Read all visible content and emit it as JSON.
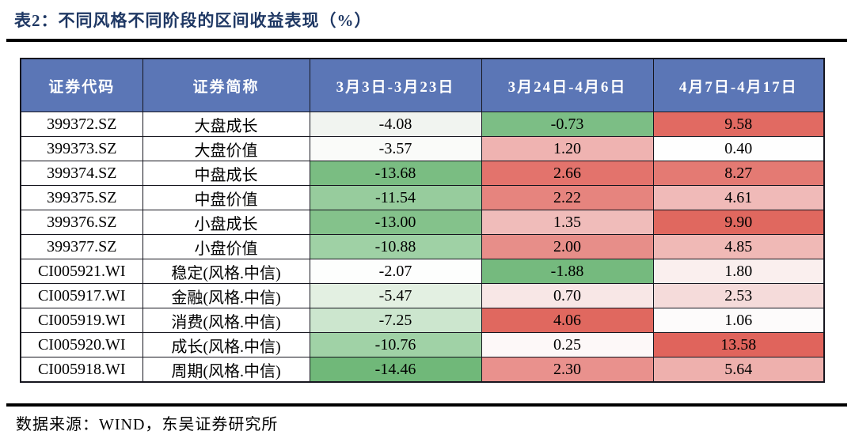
{
  "title": "表2：不同风格不同阶段的区间收益表现（%）",
  "footer": "数据来源：WIND，东吴证券研究所",
  "style": {
    "title_color": "#1F3864",
    "header_bg": "#5B76B6",
    "header_text": "#FFFFFF",
    "border_color": "#16161F",
    "positive_strong": "#E0645C",
    "negative_strong": "#70B879"
  },
  "table": {
    "headers": [
      "证券代码",
      "证券简称",
      "3月3日-3月23日",
      "3月24日-4月6日",
      "4月7日-4月17日"
    ],
    "rows": [
      {
        "code": "399372.SZ",
        "name": "大盘成长",
        "cells": [
          {
            "text": "-4.08",
            "bg": "#F1F4F0"
          },
          {
            "text": "-0.73",
            "bg": "#7CBE85"
          },
          {
            "text": "9.58",
            "bg": "#E16A62"
          }
        ]
      },
      {
        "code": "399373.SZ",
        "name": "大盘价值",
        "cells": [
          {
            "text": "-3.57",
            "bg": "#FAFBF9"
          },
          {
            "text": "1.20",
            "bg": "#EFB3B1"
          },
          {
            "text": "0.40",
            "bg": "#FEFEFE"
          }
        ]
      },
      {
        "code": "399374.SZ",
        "name": "中盘成长",
        "cells": [
          {
            "text": "-13.68",
            "bg": "#7ABD82"
          },
          {
            "text": "2.66",
            "bg": "#E3736C"
          },
          {
            "text": "8.27",
            "bg": "#E47A73"
          }
        ]
      },
      {
        "code": "399375.SZ",
        "name": "中盘价值",
        "cells": [
          {
            "text": "-11.54",
            "bg": "#97CC9D"
          },
          {
            "text": "2.22",
            "bg": "#E6847E"
          },
          {
            "text": "4.61",
            "bg": "#F0BAB8"
          }
        ]
      },
      {
        "code": "399376.SZ",
        "name": "小盘成长",
        "cells": [
          {
            "text": "-13.00",
            "bg": "#84C28B"
          },
          {
            "text": "1.35",
            "bg": "#F0BCBA"
          },
          {
            "text": "9.90",
            "bg": "#E0685F"
          }
        ]
      },
      {
        "code": "399377.SZ",
        "name": "小盘价值",
        "cells": [
          {
            "text": "-10.88",
            "bg": "#9FD1A5"
          },
          {
            "text": "2.00",
            "bg": "#E78E89"
          },
          {
            "text": "4.85",
            "bg": "#F0B9B6"
          }
        ]
      },
      {
        "code": "CI005921.WI",
        "name": "稳定(风格.中信)",
        "cells": [
          {
            "text": "-2.07",
            "bg": "#FDFEFD"
          },
          {
            "text": "-1.88",
            "bg": "#75BA7E"
          },
          {
            "text": "1.80",
            "bg": "#FAEFEE"
          }
        ]
      },
      {
        "code": "CI005917.WI",
        "name": "金融(风格.中信)",
        "cells": [
          {
            "text": "-5.47",
            "bg": "#E3F0E2"
          },
          {
            "text": "0.70",
            "bg": "#F8E7E6"
          },
          {
            "text": "2.53",
            "bg": "#F5DBDA"
          }
        ]
      },
      {
        "code": "CI005919.WI",
        "name": "消费(风格.中信)",
        "cells": [
          {
            "text": "-7.25",
            "bg": "#CCE6CE"
          },
          {
            "text": "4.06",
            "bg": "#E0685F"
          },
          {
            "text": "1.06",
            "bg": "#FDFBFB"
          }
        ]
      },
      {
        "code": "CI005920.WI",
        "name": "成长(风格.中信)",
        "cells": [
          {
            "text": "-10.76",
            "bg": "#A0D2A6"
          },
          {
            "text": "0.25",
            "bg": "#FDF8F8"
          },
          {
            "text": "13.58",
            "bg": "#E0645C"
          }
        ]
      },
      {
        "code": "CI005918.WI",
        "name": "周期(风格.中信)",
        "cells": [
          {
            "text": "-14.46",
            "bg": "#70B879"
          },
          {
            "text": "2.30",
            "bg": "#E9918D"
          },
          {
            "text": "5.64",
            "bg": "#EEB0AD"
          }
        ]
      }
    ]
  }
}
